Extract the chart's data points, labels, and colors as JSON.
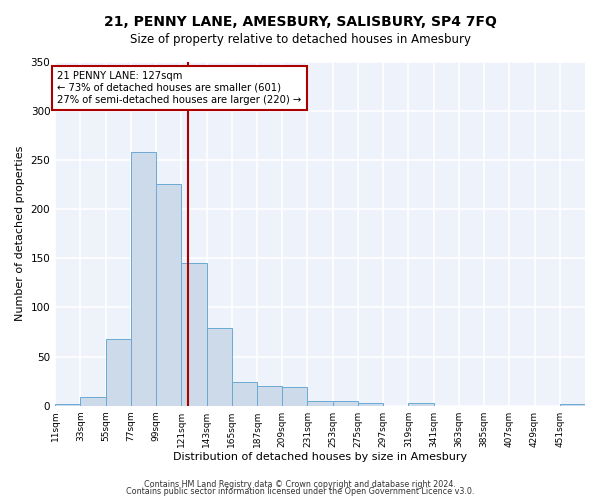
{
  "title": "21, PENNY LANE, AMESBURY, SALISBURY, SP4 7FQ",
  "subtitle": "Size of property relative to detached houses in Amesbury",
  "xlabel": "Distribution of detached houses by size in Amesbury",
  "ylabel": "Number of detached properties",
  "bin_labels": [
    "11sqm",
    "33sqm",
    "55sqm",
    "77sqm",
    "99sqm",
    "121sqm",
    "143sqm",
    "165sqm",
    "187sqm",
    "209sqm",
    "231sqm",
    "253sqm",
    "275sqm",
    "297sqm",
    "319sqm",
    "341sqm",
    "363sqm",
    "385sqm",
    "407sqm",
    "429sqm",
    "451sqm"
  ],
  "bin_edges": [
    11,
    33,
    55,
    77,
    99,
    121,
    143,
    165,
    187,
    209,
    231,
    253,
    275,
    297,
    319,
    341,
    363,
    385,
    407,
    429,
    451
  ],
  "bar_heights": [
    2,
    9,
    68,
    258,
    225,
    145,
    79,
    24,
    20,
    19,
    5,
    5,
    3,
    0,
    3,
    0,
    0,
    0,
    0,
    0,
    2
  ],
  "bar_color": "#ccdaea",
  "bar_edge_color": "#6aaad4",
  "property_value": 127,
  "property_label": "21 PENNY LANE: 127sqm",
  "annotation_line1": "← 73% of detached houses are smaller (601)",
  "annotation_line2": "27% of semi-detached houses are larger (220) →",
  "vline_color": "#aa0000",
  "box_edge_color": "#aa0000",
  "ylim": [
    0,
    350
  ],
  "background_color": "#eef2fb",
  "grid_color": "#ffffff",
  "footer_line1": "Contains HM Land Registry data © Crown copyright and database right 2024.",
  "footer_line2": "Contains public sector information licensed under the Open Government Licence v3.0."
}
